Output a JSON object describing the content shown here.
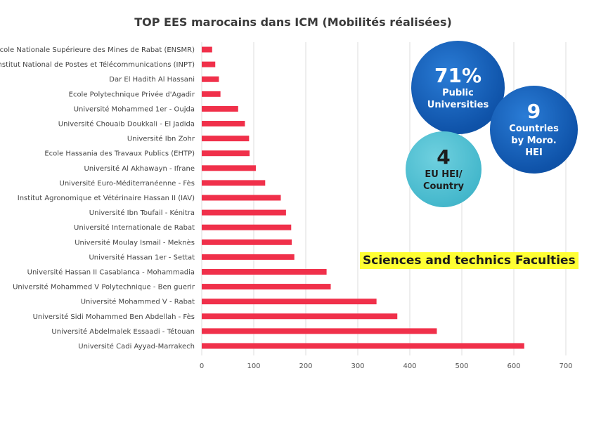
{
  "chart_data": {
    "type": "bar",
    "orientation": "horizontal",
    "title": "TOP EES marocains dans ICM (Mobilités réalisées)",
    "categories": [
      "Ecole Nationale Supérieure des Mines de Rabat (ENSMR)",
      "Institut National de Postes et Télécommunications (INPT)",
      "Dar El Hadith Al Hassani",
      "Ecole Polytechnique Privée d'Agadir",
      "Université Mohammed 1er - Oujda",
      "Université Chouaib Doukkali - El Jadida",
      "Université Ibn Zohr",
      "Ecole Hassania des Travaux Publics (EHTP)",
      "Université Al Akhawayn - Ifrane",
      "Université Euro-Méditerranéenne - Fès",
      "Institut Agronomique et Vétérinaire Hassan II (IAV)",
      "Université Ibn Toufail - Kénitra",
      "Université Internationale de Rabat",
      "Université Moulay Ismail - Meknès",
      "Université Hassan 1er - Settat",
      "Université Hassan II Casablanca - Mohammadia",
      "Université Mohammed V Polytechnique - Ben guerir",
      "Université Mohammed V - Rabat",
      "Université Sidi Mohammed Ben Abdellah - Fès",
      "Université Abdelmalek Essaadi - Tétouan",
      "Université Cadi Ayyad-Marrakech"
    ],
    "values": [
      20,
      26,
      33,
      36,
      70,
      83,
      91,
      92,
      104,
      122,
      152,
      162,
      172,
      173,
      178,
      240,
      248,
      336,
      376,
      452,
      620
    ],
    "xlim": [
      0,
      700
    ],
    "xticks": [
      "0",
      "100",
      "200",
      "300",
      "400",
      "500",
      "600",
      "700"
    ],
    "grid": true,
    "colors": {
      "bar": "#f0304a"
    }
  },
  "bubbles": {
    "public": {
      "big": "71%",
      "line1": "Public",
      "line2": "Universities"
    },
    "countries": {
      "big": "9",
      "line1": "Countries",
      "line2": "by Moro.",
      "line3": "HEI"
    },
    "eu": {
      "big": "4",
      "line1": "EU HEI/",
      "line2": "Country"
    }
  },
  "highlight_label": "Sciences and technics Faculties",
  "colors": {
    "bubble_dark": "#0f53a9",
    "bubble_light": "#45b8cc",
    "highlight": "#ffff33"
  }
}
